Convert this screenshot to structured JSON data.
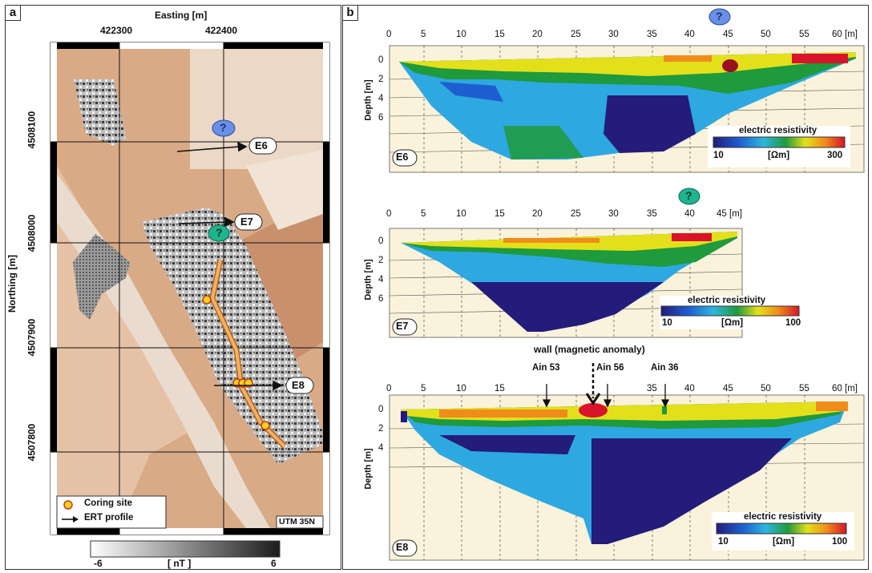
{
  "panel_a": {
    "label": "a",
    "easting_title": "Easting [m]",
    "easting_ticks": [
      "422300",
      "422400"
    ],
    "northing_title": "Northing [m]",
    "northing_ticks": [
      "4508100",
      "4508000",
      "4507900",
      "4507800"
    ],
    "profiles": [
      {
        "name": "E6",
        "question": "?",
        "question_color": "#6a8fe6"
      },
      {
        "name": "E7",
        "question": "?",
        "question_color": "#1fb38e"
      },
      {
        "name": "E8"
      }
    ],
    "legend": {
      "coring": "Coring site",
      "ert": "ERT profile"
    },
    "utm": "UTM 35N",
    "colorbar": {
      "min": "-6",
      "unit": "[ nT ]",
      "max": "6"
    }
  },
  "panel_b": {
    "label": "b",
    "sections": [
      {
        "name": "E6",
        "x_ticks": [
          "0",
          "5",
          "10",
          "15",
          "20",
          "25",
          "30",
          "35",
          "40",
          "45",
          "50",
          "55",
          "60"
        ],
        "x_unit": "[m]",
        "depth_ticks": [
          "0",
          "2",
          "4",
          "6"
        ],
        "depth_title": "Depth [m]",
        "marker": "?",
        "marker_color": "#6a8fe6",
        "scale": {
          "title": "electric resistivity",
          "min": "10",
          "unit": "[Ωm]",
          "max": "300"
        }
      },
      {
        "name": "E7",
        "x_ticks": [
          "0",
          "5",
          "10",
          "15",
          "20",
          "25",
          "30",
          "35",
          "40",
          "45"
        ],
        "x_unit": "[m]",
        "depth_ticks": [
          "0",
          "2",
          "4",
          "6"
        ],
        "depth_title": "Depth [m]",
        "marker": "?",
        "marker_color": "#1fb38e",
        "scale": {
          "title": "electric resistivity",
          "min": "10",
          "unit": "[Ωm]",
          "max": "100"
        }
      },
      {
        "name": "E8",
        "x_ticks": [
          "0",
          "5",
          "10",
          "15",
          "20",
          "25",
          "30",
          "35",
          "40",
          "45",
          "50",
          "55",
          "60"
        ],
        "x_unit": "[m]",
        "depth_ticks": [
          "0",
          "2",
          "4"
        ],
        "depth_title": "Depth [m]",
        "wall_label": "wall (magnetic anomaly)",
        "cores": [
          "Ain 53",
          "Ain 56",
          "Ain 36"
        ],
        "scale": {
          "title": "electric resistivity",
          "min": "10",
          "unit": "[Ωm]",
          "max": "100"
        }
      }
    ]
  },
  "colors": {
    "field": "#d9aa86",
    "resistivity_low": "#241c7a",
    "resistivity_mid": "#1f9a3c",
    "resistivity_high": "#d8132a"
  }
}
